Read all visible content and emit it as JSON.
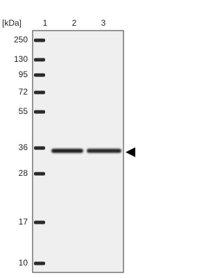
{
  "unit_label": "[kDa]",
  "lanes": [
    "1",
    "2",
    "3"
  ],
  "markers": [
    "250",
    "130",
    "95",
    "72",
    "55",
    "36",
    "28",
    "17",
    "10"
  ]
}
